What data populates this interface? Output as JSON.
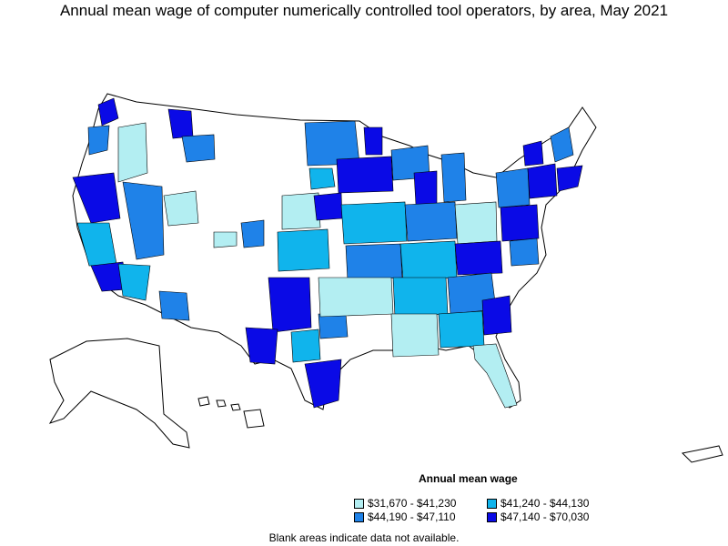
{
  "title": "Annual mean wage of computer numerically controlled tool operators, by area, May 2021",
  "legend": {
    "title": "Annual mean wage",
    "items": [
      {
        "label": "$31,670 - $41,230",
        "color": "#b3eef2"
      },
      {
        "label": "$41,240 - $44,130",
        "color": "#10b4ec"
      },
      {
        "label": "$44,190 - $47,110",
        "color": "#1f82e8"
      },
      {
        "label": "$47,140 - $70,030",
        "color": "#0a0ae6"
      }
    ]
  },
  "note": "Blank areas indicate data not available."
}
